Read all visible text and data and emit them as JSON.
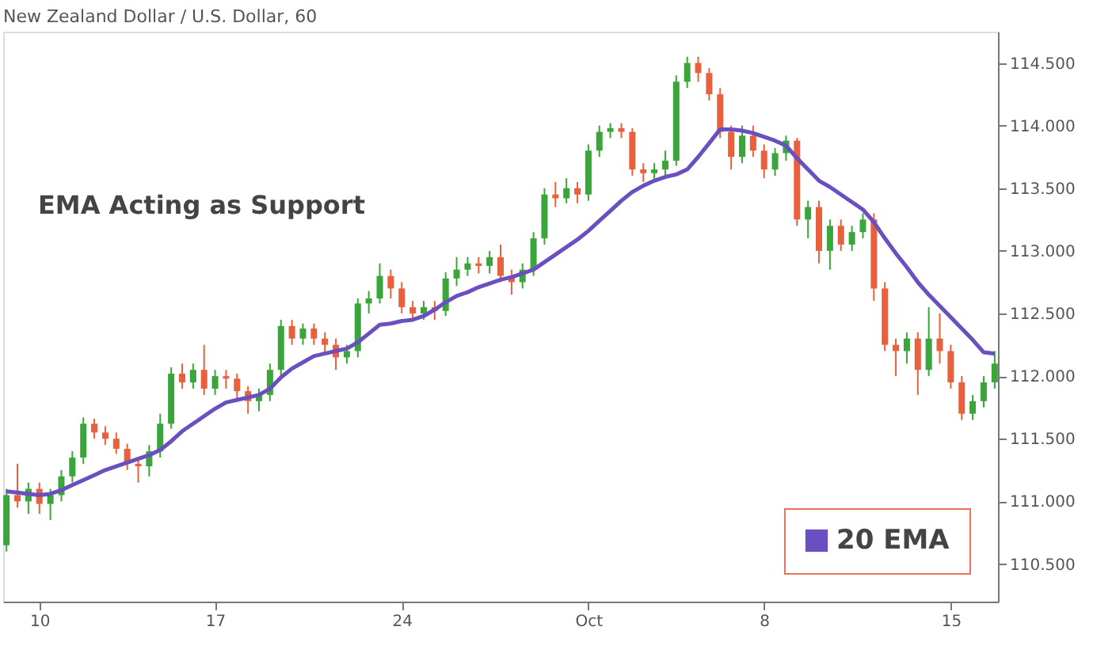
{
  "chart_data": {
    "type": "candlestick",
    "title": "New Zealand Dollar / U.S. Dollar, 60",
    "annotations": [
      "EMA Acting as Support"
    ],
    "categories": [
      null,
      null,
      null,
      "10",
      null,
      null,
      null,
      null,
      null,
      null,
      null,
      null,
      null,
      null,
      null,
      null,
      null,
      null,
      null,
      "17",
      null,
      null,
      null,
      null,
      null,
      null,
      null,
      null,
      null,
      null,
      null,
      null,
      null,
      null,
      null,
      null,
      "24",
      null,
      null,
      null,
      null,
      null,
      null,
      null,
      null,
      null,
      null,
      null,
      null,
      null,
      null,
      null,
      null,
      "Oct",
      null,
      null,
      null,
      null,
      null,
      null,
      null,
      null,
      null,
      null,
      null,
      null,
      null,
      null,
      null,
      "8",
      null,
      null,
      null,
      null,
      null,
      null,
      null,
      null,
      null,
      null,
      null,
      null,
      null,
      null,
      null,
      null,
      "15",
      null,
      null,
      null,
      null
    ],
    "ohlc": [
      [
        110.65,
        111.1,
        110.6,
        111.05
      ],
      [
        111.05,
        111.3,
        110.95,
        111.0
      ],
      [
        111.0,
        111.15,
        110.9,
        111.1
      ],
      [
        111.1,
        111.15,
        110.9,
        110.98
      ],
      [
        110.98,
        111.1,
        110.85,
        111.05
      ],
      [
        111.05,
        111.25,
        111.0,
        111.2
      ],
      [
        111.2,
        111.4,
        111.15,
        111.35
      ],
      [
        111.35,
        111.67,
        111.3,
        111.62
      ],
      [
        111.62,
        111.66,
        111.5,
        111.55
      ],
      [
        111.55,
        111.6,
        111.45,
        111.5
      ],
      [
        111.5,
        111.55,
        111.38,
        111.42
      ],
      [
        111.42,
        111.46,
        111.25,
        111.3
      ],
      [
        111.3,
        111.35,
        111.15,
        111.28
      ],
      [
        111.28,
        111.45,
        111.2,
        111.4
      ],
      [
        111.4,
        111.7,
        111.35,
        111.62
      ],
      [
        111.62,
        112.07,
        111.58,
        112.02
      ],
      [
        112.02,
        112.1,
        111.9,
        111.95
      ],
      [
        111.95,
        112.1,
        111.9,
        112.05
      ],
      [
        112.05,
        112.25,
        111.85,
        111.9
      ],
      [
        111.9,
        112.05,
        111.85,
        112.0
      ],
      [
        112.0,
        112.05,
        111.9,
        111.98
      ],
      [
        111.98,
        112.02,
        111.82,
        111.88
      ],
      [
        111.88,
        111.92,
        111.7,
        111.8
      ],
      [
        111.8,
        111.9,
        111.72,
        111.85
      ],
      [
        111.85,
        112.1,
        111.8,
        112.05
      ],
      [
        112.05,
        112.45,
        112.0,
        112.4
      ],
      [
        112.4,
        112.45,
        112.25,
        112.3
      ],
      [
        112.3,
        112.42,
        112.25,
        112.38
      ],
      [
        112.38,
        112.42,
        112.25,
        112.3
      ],
      [
        112.3,
        112.35,
        112.18,
        112.25
      ],
      [
        112.25,
        112.3,
        112.05,
        112.15
      ],
      [
        112.15,
        112.25,
        112.1,
        112.2
      ],
      [
        112.2,
        112.62,
        112.15,
        112.58
      ],
      [
        112.58,
        112.68,
        112.5,
        112.62
      ],
      [
        112.62,
        112.9,
        112.58,
        112.8
      ],
      [
        112.8,
        112.85,
        112.62,
        112.7
      ],
      [
        112.7,
        112.75,
        112.5,
        112.55
      ],
      [
        112.55,
        112.6,
        112.45,
        112.5
      ],
      [
        112.5,
        112.6,
        112.45,
        112.55
      ],
      [
        112.55,
        112.6,
        112.45,
        112.52
      ],
      [
        112.52,
        112.83,
        112.48,
        112.78
      ],
      [
        112.78,
        112.95,
        112.72,
        112.85
      ],
      [
        112.85,
        112.95,
        112.8,
        112.9
      ],
      [
        112.9,
        112.95,
        112.82,
        112.88
      ],
      [
        112.88,
        113.0,
        112.82,
        112.95
      ],
      [
        112.95,
        113.05,
        112.75,
        112.8
      ],
      [
        112.8,
        112.85,
        112.65,
        112.75
      ],
      [
        112.75,
        112.9,
        112.7,
        112.85
      ],
      [
        112.85,
        113.15,
        112.8,
        113.1
      ],
      [
        113.1,
        113.5,
        113.05,
        113.45
      ],
      [
        113.45,
        113.55,
        113.35,
        113.42
      ],
      [
        113.42,
        113.58,
        113.38,
        113.5
      ],
      [
        113.5,
        113.55,
        113.38,
        113.45
      ],
      [
        113.45,
        113.85,
        113.4,
        113.8
      ],
      [
        113.8,
        114.0,
        113.75,
        113.95
      ],
      [
        113.95,
        114.02,
        113.9,
        113.98
      ],
      [
        113.98,
        114.02,
        113.9,
        113.95
      ],
      [
        113.95,
        113.98,
        113.6,
        113.65
      ],
      [
        113.65,
        113.7,
        113.55,
        113.62
      ],
      [
        113.62,
        113.7,
        113.55,
        113.65
      ],
      [
        113.65,
        113.8,
        113.6,
        113.72
      ],
      [
        113.72,
        114.4,
        113.68,
        114.35
      ],
      [
        114.35,
        114.55,
        114.3,
        114.5
      ],
      [
        114.5,
        114.55,
        114.35,
        114.42
      ],
      [
        114.42,
        114.46,
        114.2,
        114.25
      ],
      [
        114.25,
        114.3,
        113.9,
        113.95
      ],
      [
        113.95,
        114.0,
        113.65,
        113.75
      ],
      [
        113.75,
        114.0,
        113.7,
        113.92
      ],
      [
        113.92,
        114.0,
        113.75,
        113.8
      ],
      [
        113.8,
        113.85,
        113.58,
        113.65
      ],
      [
        113.65,
        113.82,
        113.6,
        113.78
      ],
      [
        113.78,
        113.92,
        113.72,
        113.88
      ],
      [
        113.88,
        113.9,
        113.2,
        113.25
      ],
      [
        113.25,
        113.4,
        113.1,
        113.35
      ],
      [
        113.35,
        113.4,
        112.9,
        113.0
      ],
      [
        113.0,
        113.25,
        112.85,
        113.2
      ],
      [
        113.2,
        113.25,
        113.0,
        113.05
      ],
      [
        113.05,
        113.2,
        113.0,
        113.15
      ],
      [
        113.15,
        113.3,
        113.1,
        113.25
      ],
      [
        113.25,
        113.3,
        112.6,
        112.7
      ],
      [
        112.7,
        112.75,
        112.2,
        112.25
      ],
      [
        112.25,
        112.3,
        112.0,
        112.2
      ],
      [
        112.2,
        112.35,
        112.1,
        112.3
      ],
      [
        112.3,
        112.35,
        111.85,
        112.05
      ],
      [
        112.05,
        112.55,
        112.0,
        112.3
      ],
      [
        112.3,
        112.5,
        112.1,
        112.2
      ],
      [
        112.2,
        112.25,
        111.9,
        111.95
      ],
      [
        111.95,
        112.0,
        111.65,
        111.7
      ],
      [
        111.7,
        111.85,
        111.65,
        111.8
      ],
      [
        111.8,
        112.0,
        111.75,
        111.95
      ],
      [
        111.95,
        112.2,
        111.9,
        112.1
      ]
    ],
    "colors": [
      "#3aa53a",
      "#e8603c",
      "#3aa53a",
      "#e8603c",
      "#3aa53a",
      "#3aa53a",
      "#3aa53a",
      "#3aa53a",
      "#e8603c",
      "#e8603c",
      "#e8603c",
      "#e8603c",
      "#e8603c",
      "#3aa53a",
      "#3aa53a",
      "#3aa53a",
      "#e8603c",
      "#3aa53a",
      "#e8603c",
      "#3aa53a",
      "#e8603c",
      "#e8603c",
      "#e8603c",
      "#3aa53a",
      "#3aa53a",
      "#3aa53a",
      "#e8603c",
      "#3aa53a",
      "#e8603c",
      "#e8603c",
      "#e8603c",
      "#3aa53a",
      "#3aa53a",
      "#3aa53a",
      "#3aa53a",
      "#e8603c",
      "#e8603c",
      "#e8603c",
      "#3aa53a",
      "#e8603c",
      "#3aa53a",
      "#3aa53a",
      "#3aa53a",
      "#e8603c",
      "#3aa53a",
      "#e8603c",
      "#e8603c",
      "#3aa53a",
      "#3aa53a",
      "#3aa53a",
      "#e8603c",
      "#3aa53a",
      "#e8603c",
      "#3aa53a",
      "#3aa53a",
      "#3aa53a",
      "#e8603c",
      "#e8603c",
      "#e8603c",
      "#3aa53a",
      "#3aa53a",
      "#3aa53a",
      "#3aa53a",
      "#e8603c",
      "#e8603c",
      "#e8603c",
      "#e8603c",
      "#3aa53a",
      "#e8603c",
      "#e8603c",
      "#3aa53a",
      "#3aa53a",
      "#e8603c",
      "#3aa53a",
      "#e8603c",
      "#3aa53a",
      "#e8603c",
      "#3aa53a",
      "#3aa53a",
      "#e8603c",
      "#e8603c",
      "#e8603c",
      "#3aa53a",
      "#e8603c",
      "#3aa53a",
      "#e8603c",
      "#e8603c",
      "#e8603c",
      "#3aa53a",
      "#3aa53a",
      "#3aa53a"
    ],
    "series": [
      {
        "name": "20 EMA",
        "type": "line",
        "color": "#6a4fc0",
        "values": [
          111.08,
          111.07,
          111.06,
          111.05,
          111.06,
          111.09,
          111.13,
          111.17,
          111.21,
          111.25,
          111.28,
          111.31,
          111.34,
          111.37,
          111.41,
          111.48,
          111.56,
          111.62,
          111.68,
          111.74,
          111.79,
          111.81,
          111.83,
          111.85,
          111.9,
          111.99,
          112.06,
          112.11,
          112.16,
          112.18,
          112.2,
          112.22,
          112.27,
          112.34,
          112.41,
          112.42,
          112.44,
          112.45,
          112.48,
          112.53,
          112.59,
          112.64,
          112.67,
          112.71,
          112.74,
          112.77,
          112.79,
          112.82,
          112.85,
          112.91,
          112.97,
          113.03,
          113.09,
          113.16,
          113.24,
          113.32,
          113.4,
          113.47,
          113.52,
          113.56,
          113.59,
          113.61,
          113.65,
          113.75,
          113.86,
          113.97,
          113.97,
          113.96,
          113.94,
          113.91,
          113.88,
          113.84,
          113.74,
          113.65,
          113.56,
          113.51,
          113.45,
          113.39,
          113.33,
          113.23,
          113.1,
          112.98,
          112.87,
          112.75,
          112.65,
          112.56,
          112.47,
          112.38,
          112.29,
          112.19,
          112.18
        ]
      }
    ],
    "ylim": [
      110.2,
      114.75
    ],
    "yticks": [
      {
        "value": 110.5,
        "label": "110.500"
      },
      {
        "value": 111,
        "label": "111.000"
      },
      {
        "value": 111.5,
        "label": "111.500"
      },
      {
        "value": 112,
        "label": "112.000"
      },
      {
        "value": 112.5,
        "label": "112.500"
      },
      {
        "value": 113,
        "label": "113.000"
      },
      {
        "value": 113.5,
        "label": "113.500"
      },
      {
        "value": 114,
        "label": "114.000"
      },
      {
        "value": 114.5,
        "label": "114.500"
      }
    ],
    "grid": false,
    "legend": "bottom right",
    "marker": "none",
    "line_style": "solid"
  }
}
